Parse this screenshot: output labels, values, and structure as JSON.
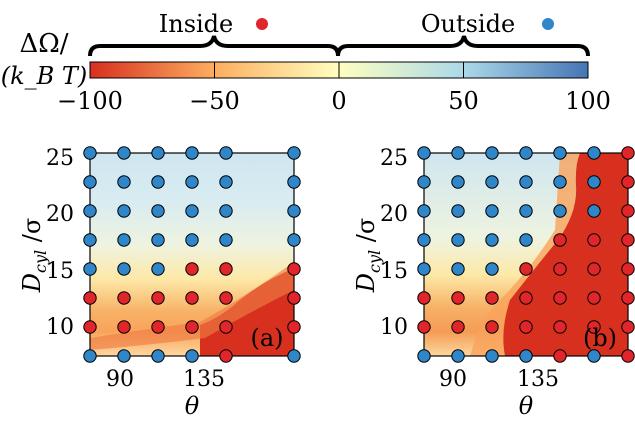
{
  "chart_data": [
    {
      "type": "scatter",
      "panel_label": "(a)",
      "xlabel": "θ",
      "ylabel": "D_cyl / σ",
      "xlim": [
        75,
        165
      ],
      "ylim": [
        7.5,
        25
      ],
      "xticks": [
        90,
        135
      ],
      "yticks": [
        10,
        15,
        20,
        25
      ],
      "x": [
        75,
        87,
        99,
        111,
        123,
        135,
        147,
        159,
        165
      ],
      "field_note": "background heatmap of ΔΩ/(k_B T) interpolated between points",
      "points": [
        {
          "x": 75,
          "y": 25,
          "state": "outside"
        },
        {
          "x": 90,
          "y": 25,
          "state": "outside"
        },
        {
          "x": 105,
          "y": 25,
          "state": "outside"
        },
        {
          "x": 120,
          "y": 25,
          "state": "outside"
        },
        {
          "x": 135,
          "y": 25,
          "state": "outside"
        },
        {
          "x": 165,
          "y": 25,
          "state": "outside"
        },
        {
          "x": 75,
          "y": 22.5,
          "state": "outside"
        },
        {
          "x": 90,
          "y": 22.5,
          "state": "outside"
        },
        {
          "x": 105,
          "y": 22.5,
          "state": "outside"
        },
        {
          "x": 120,
          "y": 22.5,
          "state": "outside"
        },
        {
          "x": 135,
          "y": 22.5,
          "state": "outside"
        },
        {
          "x": 165,
          "y": 22.5,
          "state": "outside"
        },
        {
          "x": 75,
          "y": 20,
          "state": "outside"
        },
        {
          "x": 90,
          "y": 20,
          "state": "outside"
        },
        {
          "x": 105,
          "y": 20,
          "state": "outside"
        },
        {
          "x": 120,
          "y": 20,
          "state": "outside"
        },
        {
          "x": 135,
          "y": 20,
          "state": "outside"
        },
        {
          "x": 165,
          "y": 20,
          "state": "outside"
        },
        {
          "x": 75,
          "y": 17.5,
          "state": "outside"
        },
        {
          "x": 90,
          "y": 17.5,
          "state": "outside"
        },
        {
          "x": 105,
          "y": 17.5,
          "state": "outside"
        },
        {
          "x": 120,
          "y": 17.5,
          "state": "outside"
        },
        {
          "x": 135,
          "y": 17.5,
          "state": "outside"
        },
        {
          "x": 165,
          "y": 17.5,
          "state": "outside"
        },
        {
          "x": 75,
          "y": 15,
          "state": "outside"
        },
        {
          "x": 90,
          "y": 15,
          "state": "outside"
        },
        {
          "x": 105,
          "y": 15,
          "state": "outside"
        },
        {
          "x": 120,
          "y": 15,
          "state": "inside"
        },
        {
          "x": 135,
          "y": 15,
          "state": "inside"
        },
        {
          "x": 165,
          "y": 15,
          "state": "inside"
        },
        {
          "x": 75,
          "y": 12.5,
          "state": "inside"
        },
        {
          "x": 90,
          "y": 12.5,
          "state": "inside"
        },
        {
          "x": 105,
          "y": 12.5,
          "state": "inside"
        },
        {
          "x": 120,
          "y": 12.5,
          "state": "inside"
        },
        {
          "x": 135,
          "y": 12.5,
          "state": "inside"
        },
        {
          "x": 165,
          "y": 12.5,
          "state": "inside"
        },
        {
          "x": 75,
          "y": 10,
          "state": "inside"
        },
        {
          "x": 90,
          "y": 10,
          "state": "inside"
        },
        {
          "x": 105,
          "y": 10,
          "state": "inside"
        },
        {
          "x": 120,
          "y": 10,
          "state": "inside"
        },
        {
          "x": 135,
          "y": 10,
          "state": "inside"
        },
        {
          "x": 165,
          "y": 10,
          "state": "inside"
        },
        {
          "x": 75,
          "y": 7.5,
          "state": "outside"
        },
        {
          "x": 90,
          "y": 7.5,
          "state": "outside"
        },
        {
          "x": 105,
          "y": 7.5,
          "state": "outside"
        },
        {
          "x": 120,
          "y": 7.5,
          "state": "outside"
        },
        {
          "x": 135,
          "y": 7.5,
          "state": "inside"
        },
        {
          "x": 165,
          "y": 7.5,
          "state": "outside"
        }
      ]
    },
    {
      "type": "scatter",
      "panel_label": "(b)",
      "xlabel": "θ",
      "ylabel": "D_cyl / σ",
      "xlim": [
        75,
        165
      ],
      "ylim": [
        7.5,
        25
      ],
      "xticks": [
        90,
        135
      ],
      "yticks": [
        10,
        15,
        20,
        25
      ],
      "points": [
        {
          "x": 75,
          "y": 25,
          "state": "outside"
        },
        {
          "x": 90,
          "y": 25,
          "state": "outside"
        },
        {
          "x": 105,
          "y": 25,
          "state": "outside"
        },
        {
          "x": 120,
          "y": 25,
          "state": "outside"
        },
        {
          "x": 135,
          "y": 25,
          "state": "outside"
        },
        {
          "x": 150,
          "y": 25,
          "state": "outside"
        },
        {
          "x": 165,
          "y": 25,
          "state": "inside"
        },
        {
          "x": 75,
          "y": 22.5,
          "state": "outside"
        },
        {
          "x": 90,
          "y": 22.5,
          "state": "outside"
        },
        {
          "x": 105,
          "y": 22.5,
          "state": "outside"
        },
        {
          "x": 120,
          "y": 22.5,
          "state": "outside"
        },
        {
          "x": 135,
          "y": 22.5,
          "state": "outside"
        },
        {
          "x": 150,
          "y": 22.5,
          "state": "outside"
        },
        {
          "x": 165,
          "y": 22.5,
          "state": "inside"
        },
        {
          "x": 75,
          "y": 20,
          "state": "outside"
        },
        {
          "x": 90,
          "y": 20,
          "state": "outside"
        },
        {
          "x": 105,
          "y": 20,
          "state": "outside"
        },
        {
          "x": 120,
          "y": 20,
          "state": "outside"
        },
        {
          "x": 135,
          "y": 20,
          "state": "outside"
        },
        {
          "x": 150,
          "y": 20,
          "state": "outside"
        },
        {
          "x": 165,
          "y": 20,
          "state": "inside"
        },
        {
          "x": 75,
          "y": 17.5,
          "state": "outside"
        },
        {
          "x": 90,
          "y": 17.5,
          "state": "outside"
        },
        {
          "x": 105,
          "y": 17.5,
          "state": "outside"
        },
        {
          "x": 120,
          "y": 17.5,
          "state": "outside"
        },
        {
          "x": 135,
          "y": 17.5,
          "state": "inside"
        },
        {
          "x": 150,
          "y": 17.5,
          "state": "inside"
        },
        {
          "x": 165,
          "y": 17.5,
          "state": "inside"
        },
        {
          "x": 75,
          "y": 15,
          "state": "outside"
        },
        {
          "x": 90,
          "y": 15,
          "state": "outside"
        },
        {
          "x": 105,
          "y": 15,
          "state": "outside"
        },
        {
          "x": 120,
          "y": 15,
          "state": "inside"
        },
        {
          "x": 135,
          "y": 15,
          "state": "inside"
        },
        {
          "x": 150,
          "y": 15,
          "state": "inside"
        },
        {
          "x": 165,
          "y": 15,
          "state": "inside"
        },
        {
          "x": 75,
          "y": 12.5,
          "state": "inside"
        },
        {
          "x": 90,
          "y": 12.5,
          "state": "inside"
        },
        {
          "x": 105,
          "y": 12.5,
          "state": "inside"
        },
        {
          "x": 120,
          "y": 12.5,
          "state": "inside"
        },
        {
          "x": 135,
          "y": 12.5,
          "state": "inside"
        },
        {
          "x": 150,
          "y": 12.5,
          "state": "inside"
        },
        {
          "x": 165,
          "y": 12.5,
          "state": "inside"
        },
        {
          "x": 75,
          "y": 10,
          "state": "inside"
        },
        {
          "x": 90,
          "y": 10,
          "state": "inside"
        },
        {
          "x": 105,
          "y": 10,
          "state": "inside"
        },
        {
          "x": 120,
          "y": 10,
          "state": "inside"
        },
        {
          "x": 135,
          "y": 10,
          "state": "inside"
        },
        {
          "x": 150,
          "y": 10,
          "state": "inside"
        },
        {
          "x": 165,
          "y": 10,
          "state": "inside"
        },
        {
          "x": 75,
          "y": 7.5,
          "state": "outside"
        },
        {
          "x": 90,
          "y": 7.5,
          "state": "outside"
        },
        {
          "x": 105,
          "y": 7.5,
          "state": "outside"
        },
        {
          "x": 120,
          "y": 7.5,
          "state": "outside"
        },
        {
          "x": 135,
          "y": 7.5,
          "state": "inside"
        },
        {
          "x": 150,
          "y": 7.5,
          "state": "outside"
        },
        {
          "x": 165,
          "y": 7.5,
          "state": "inside"
        }
      ]
    }
  ],
  "colorbar": {
    "label_line1": "ΔΩ/",
    "label_line2": "(k_B T)",
    "min": -100,
    "max": 100,
    "ticks": [
      -100,
      -50,
      0,
      50,
      100
    ],
    "tick_labels": [
      "−100",
      "−50",
      "0",
      "50",
      "100"
    ],
    "colors": [
      "#d7301f",
      "#fdae61",
      "#ffffbf",
      "#abd9e9",
      "#4575b4"
    ]
  },
  "legend": {
    "inside_label": "Inside",
    "outside_label": "Outside",
    "inside_color": "#e0262a",
    "outside_color": "#2f86c9"
  },
  "axis_text": {
    "xlabel": "θ",
    "ylabel_main": "D",
    "ylabel_sub": "cyl",
    "ylabel_tail": " /σ",
    "xtick_90": "90",
    "xtick_135": "135",
    "ytick_10": "10",
    "ytick_15": "15",
    "ytick_20": "20",
    "ytick_25": "25",
    "panel_a": "(a)",
    "panel_b": "(b)"
  }
}
